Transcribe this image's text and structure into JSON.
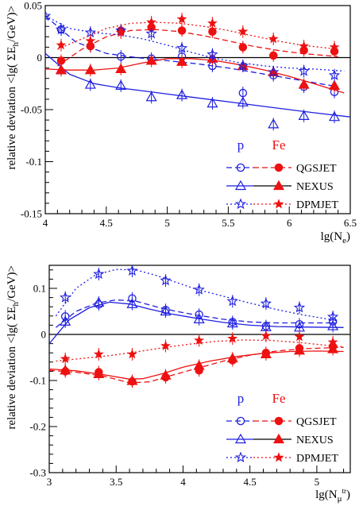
{
  "chart_data": [
    {
      "type": "line",
      "ylabel": "relative deviation <lg( ΣE_h/GeV)>",
      "xlabel": "lg(N_e)",
      "xlim": [
        4,
        6.5
      ],
      "ylim": [
        -0.15,
        0.05
      ],
      "x_ticks": [
        4,
        4.5,
        5,
        5.5,
        6,
        6.5
      ],
      "x_tick_labels": [
        "4",
        "4.5",
        "5",
        "5.5",
        "6",
        "6.5"
      ],
      "y_ticks": [
        -0.15,
        -0.1,
        -0.05,
        0,
        0.05
      ],
      "y_tick_labels": [
        "-0.15",
        "-0.1",
        "-0.05",
        "0",
        "0.05"
      ],
      "legend": {
        "headers": [
          "p",
          "Fe"
        ],
        "entries": [
          "QGSJET",
          "NEXUS",
          "DPMJET"
        ],
        "placement": "lower-right"
      },
      "series": [
        {
          "model": "QGSJET",
          "primary": "p",
          "color": "#1f1fe0",
          "marker": "open-circle",
          "line": "dashed",
          "x": [
            4.13,
            4.37,
            4.62,
            4.87,
            5.12,
            5.37,
            5.62,
            5.87,
            6.12,
            6.37
          ],
          "y": [
            0.027,
            0.011,
            0.001,
            -0.001,
            0.001,
            -0.008,
            -0.034,
            -0.017,
            -0.028,
            -0.033
          ],
          "fit_x": [
            4.0,
            4.25,
            4.5,
            4.75,
            5.0,
            5.25,
            5.5,
            5.75,
            6.0,
            6.25,
            6.4
          ],
          "fit_y": [
            0.04,
            0.015,
            0.004,
            0.0,
            -0.003,
            -0.006,
            -0.01,
            -0.015,
            -0.02,
            -0.025,
            -0.028
          ]
        },
        {
          "model": "QGSJET",
          "primary": "Fe",
          "color": "#ee1111",
          "marker": "filled-circle",
          "line": "dashed",
          "x": [
            4.13,
            4.37,
            4.62,
            4.87,
            5.12,
            5.37,
            5.62,
            5.87,
            6.12,
            6.37
          ],
          "y": [
            -0.003,
            0.011,
            0.026,
            0.029,
            0.026,
            0.025,
            0.01,
            0.002,
            0.007,
            0.006
          ],
          "fit_x": [
            4.1,
            4.3,
            4.5,
            4.7,
            4.9,
            5.1,
            5.3,
            5.5,
            5.7,
            5.9,
            6.1,
            6.4
          ],
          "fit_y": [
            -0.008,
            0.008,
            0.02,
            0.026,
            0.027,
            0.025,
            0.021,
            0.016,
            0.011,
            0.007,
            0.004,
            0.001
          ]
        },
        {
          "model": "NEXUS",
          "primary": "p",
          "color": "#1f1fe0",
          "marker": "open-triangle",
          "line": "solid",
          "x": [
            4.13,
            4.37,
            4.62,
            4.87,
            5.12,
            5.37,
            5.62,
            5.87,
            6.12,
            6.37
          ],
          "y": [
            -0.012,
            -0.026,
            -0.027,
            -0.038,
            -0.036,
            -0.044,
            -0.043,
            -0.064,
            -0.056,
            -0.057
          ],
          "fit_x": [
            4.0,
            4.2,
            4.4,
            4.6,
            4.8,
            5.0,
            5.2,
            5.4,
            5.6,
            5.8,
            6.0,
            6.2,
            6.5
          ],
          "fit_y": [
            0.004,
            -0.016,
            -0.025,
            -0.029,
            -0.032,
            -0.035,
            -0.038,
            -0.041,
            -0.044,
            -0.047,
            -0.05,
            -0.053,
            -0.057
          ]
        },
        {
          "model": "NEXUS",
          "primary": "Fe",
          "color": "#ee1111",
          "marker": "filled-triangle",
          "line": "solid",
          "x": [
            4.13,
            4.37,
            4.62,
            4.87,
            5.12,
            5.37,
            5.62,
            5.87,
            6.12,
            6.37
          ],
          "y": [
            -0.012,
            -0.012,
            -0.011,
            -0.003,
            -0.004,
            -0.001,
            -0.008,
            -0.014,
            -0.026,
            -0.027
          ],
          "fit_x": [
            4.0,
            4.2,
            4.4,
            4.6,
            4.8,
            5.0,
            5.2,
            5.4,
            5.6,
            5.8,
            6.0,
            6.2,
            6.45
          ],
          "fit_y": [
            -0.011,
            -0.012,
            -0.012,
            -0.01,
            -0.005,
            -0.001,
            -0.001,
            -0.003,
            -0.007,
            -0.012,
            -0.018,
            -0.025,
            -0.034
          ]
        },
        {
          "model": "DPMJET",
          "primary": "p",
          "color": "#1f1fe0",
          "marker": "open-star",
          "line": "dotted",
          "x": [
            4.0,
            4.13,
            4.37,
            4.62,
            4.87,
            5.12,
            5.37,
            5.62,
            5.87,
            6.12,
            6.37
          ],
          "y": [
            0.04,
            0.027,
            0.024,
            0.026,
            0.023,
            0.009,
            0.003,
            -0.008,
            -0.014,
            -0.013,
            -0.017
          ],
          "fit_x": [
            4.0,
            4.2,
            4.4,
            4.6,
            4.8,
            5.0,
            5.2,
            5.4,
            5.6,
            5.8,
            6.0,
            6.2,
            6.45
          ],
          "fit_y": [
            0.04,
            0.028,
            0.024,
            0.022,
            0.018,
            0.012,
            0.005,
            -0.001,
            -0.005,
            -0.008,
            -0.01,
            -0.011,
            -0.013
          ]
        },
        {
          "model": "DPMJET",
          "primary": "Fe",
          "color": "#ee1111",
          "marker": "filled-star",
          "line": "dotted",
          "x": [
            4.13,
            4.37,
            4.62,
            4.87,
            5.12,
            5.37,
            5.62,
            5.87,
            6.12,
            6.37
          ],
          "y": [
            0.012,
            0.016,
            0.024,
            0.034,
            0.037,
            0.033,
            0.025,
            0.018,
            0.011,
            0.01
          ],
          "fit_x": [
            4.1,
            4.3,
            4.5,
            4.7,
            4.9,
            5.1,
            5.3,
            5.5,
            5.7,
            5.9,
            6.1,
            6.4
          ],
          "fit_y": [
            0.008,
            0.018,
            0.028,
            0.033,
            0.034,
            0.033,
            0.03,
            0.026,
            0.021,
            0.016,
            0.012,
            0.008
          ]
        }
      ]
    },
    {
      "type": "line",
      "ylabel": "relative deviation <lg( ΣE_h/GeV)>",
      "xlabel": "lg(N_μ^tr)",
      "xlim": [
        3,
        5.25
      ],
      "ylim": [
        -0.3,
        0.15
      ],
      "x_ticks": [
        3,
        3.5,
        4,
        4.5,
        5
      ],
      "x_tick_labels": [
        "3",
        "3.5",
        "4",
        "4.5",
        "5"
      ],
      "y_ticks": [
        -0.3,
        -0.2,
        -0.1,
        0,
        0.1
      ],
      "y_tick_labels": [
        "-0.3",
        "-0.2",
        "-0.1",
        "0",
        "0.1"
      ],
      "legend": {
        "headers": [
          "p",
          "Fe"
        ],
        "entries": [
          "QGSJET",
          "NEXUS",
          "DPMJET"
        ],
        "placement": "lower-right"
      },
      "series": [
        {
          "model": "QGSJET",
          "primary": "p",
          "color": "#1f1fe0",
          "marker": "open-circle",
          "line": "dashed",
          "x": [
            3.12,
            3.37,
            3.62,
            3.87,
            4.12,
            4.37,
            4.62,
            4.87,
            5.12
          ],
          "y": [
            0.039,
            0.065,
            0.078,
            0.053,
            0.043,
            0.027,
            0.018,
            0.022,
            0.028
          ],
          "fit_x": [
            3.05,
            3.2,
            3.35,
            3.5,
            3.65,
            3.8,
            3.95,
            4.1,
            4.3,
            4.5,
            4.7,
            4.9,
            5.15
          ],
          "fit_y": [
            0.015,
            0.05,
            0.068,
            0.075,
            0.072,
            0.06,
            0.05,
            0.042,
            0.033,
            0.027,
            0.025,
            0.025,
            0.025
          ]
        },
        {
          "model": "QGSJET",
          "primary": "Fe",
          "color": "#ee1111",
          "marker": "filled-circle",
          "line": "dashed",
          "x": [
            3.12,
            3.37,
            3.62,
            3.87,
            4.12,
            4.37,
            4.62,
            4.87,
            5.12
          ],
          "y": [
            -0.08,
            -0.082,
            -0.102,
            -0.093,
            -0.078,
            -0.056,
            -0.04,
            -0.03,
            -0.026
          ],
          "fit_x": [
            3.0,
            3.2,
            3.4,
            3.6,
            3.75,
            3.9,
            4.1,
            4.3,
            4.5,
            4.7,
            4.9,
            5.2
          ],
          "fit_y": [
            -0.078,
            -0.082,
            -0.09,
            -0.105,
            -0.103,
            -0.09,
            -0.074,
            -0.058,
            -0.045,
            -0.036,
            -0.031,
            -0.028
          ]
        },
        {
          "model": "NEXUS",
          "primary": "p",
          "color": "#1f1fe0",
          "marker": "open-triangle",
          "line": "solid",
          "x": [
            3.12,
            3.37,
            3.62,
            3.87,
            4.12,
            4.37,
            4.62,
            4.87,
            5.12
          ],
          "y": [
            0.028,
            0.069,
            0.066,
            0.05,
            0.033,
            0.024,
            0.016,
            0.015,
            0.018
          ],
          "fit_x": [
            3.0,
            3.15,
            3.3,
            3.45,
            3.6,
            3.75,
            3.9,
            4.1,
            4.3,
            4.5,
            4.7,
            4.9,
            5.2
          ],
          "fit_y": [
            -0.02,
            0.032,
            0.058,
            0.07,
            0.066,
            0.055,
            0.045,
            0.035,
            0.026,
            0.02,
            0.017,
            0.016,
            0.015
          ]
        },
        {
          "model": "NEXUS",
          "primary": "Fe",
          "color": "#ee1111",
          "marker": "filled-triangle",
          "line": "solid",
          "x": [
            3.12,
            3.37,
            3.62,
            3.87,
            4.12,
            4.37,
            4.62,
            4.87,
            5.12
          ],
          "y": [
            -0.078,
            -0.086,
            -0.101,
            -0.089,
            -0.068,
            -0.052,
            -0.043,
            -0.035,
            -0.032
          ],
          "fit_x": [
            3.0,
            3.2,
            3.4,
            3.6,
            3.7,
            3.85,
            4.0,
            4.2,
            4.4,
            4.6,
            4.8,
            5.0,
            5.2
          ],
          "fit_y": [
            -0.075,
            -0.079,
            -0.087,
            -0.097,
            -0.096,
            -0.085,
            -0.071,
            -0.058,
            -0.048,
            -0.041,
            -0.037,
            -0.036,
            -0.037
          ]
        },
        {
          "model": "DPMJET",
          "primary": "p",
          "color": "#1f1fe0",
          "marker": "open-star",
          "line": "dotted",
          "x": [
            3.12,
            3.37,
            3.62,
            3.87,
            4.12,
            4.37,
            4.62,
            4.87,
            5.12
          ],
          "y": [
            0.08,
            0.131,
            0.138,
            0.117,
            0.097,
            0.072,
            0.067,
            0.058,
            0.038
          ],
          "fit_x": [
            3.05,
            3.2,
            3.35,
            3.5,
            3.65,
            3.8,
            3.95,
            4.1,
            4.3,
            4.5,
            4.7,
            4.9,
            5.15
          ],
          "fit_y": [
            0.04,
            0.1,
            0.13,
            0.141,
            0.14,
            0.128,
            0.113,
            0.098,
            0.083,
            0.068,
            0.054,
            0.042,
            0.03
          ]
        },
        {
          "model": "DPMJET",
          "primary": "Fe",
          "color": "#ee1111",
          "marker": "filled-star",
          "line": "dotted",
          "x": [
            3.12,
            3.37,
            3.62,
            3.87,
            4.12,
            4.37,
            4.62,
            4.87,
            5.12
          ],
          "y": [
            -0.053,
            -0.043,
            -0.043,
            -0.025,
            -0.013,
            -0.009,
            -0.003,
            -0.005,
            -0.017
          ],
          "fit_x": [
            3.05,
            3.25,
            3.45,
            3.65,
            3.85,
            4.05,
            4.25,
            4.45,
            4.65,
            4.85,
            5.05,
            5.2
          ],
          "fit_y": [
            -0.058,
            -0.052,
            -0.046,
            -0.038,
            -0.029,
            -0.021,
            -0.015,
            -0.012,
            -0.013,
            -0.017,
            -0.023,
            -0.027
          ]
        }
      ]
    }
  ]
}
